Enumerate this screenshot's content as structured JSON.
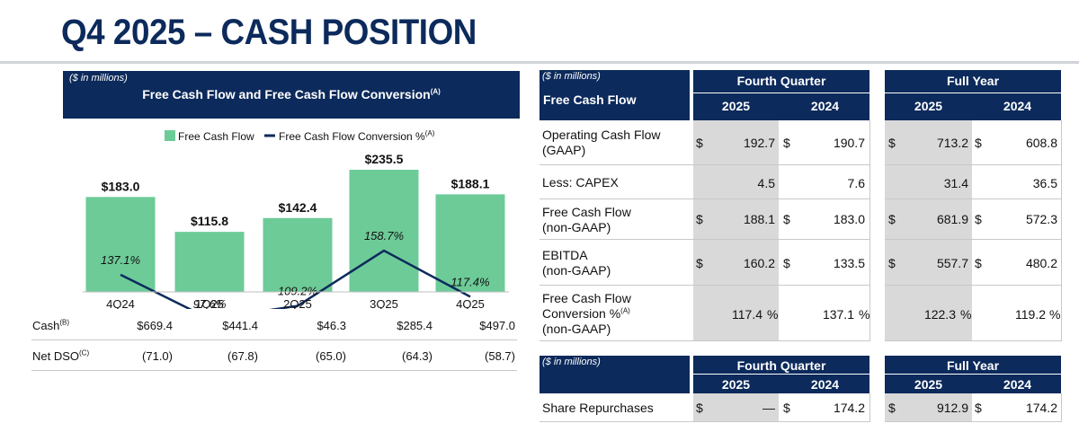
{
  "page": {
    "title": "Q4 2025 – CASH POSITION"
  },
  "chart_panel": {
    "units": "($ in millions)",
    "title": "Free Cash Flow and Free Cash Flow Conversion",
    "title_sup": "(A)",
    "legend": {
      "bar": "Free Cash Flow",
      "line": "Free Cash Flow Conversion %",
      "line_sup": "(A)"
    }
  },
  "chart_data": {
    "type": "bar",
    "title": "Free Cash Flow and Free Cash Flow Conversion",
    "categories": [
      "4Q24",
      "1Q25",
      "2Q25",
      "3Q25",
      "4Q25"
    ],
    "series": [
      {
        "name": "Free Cash Flow",
        "type": "bar",
        "values": [
          183.0,
          115.8,
          142.4,
          235.5,
          188.1
        ],
        "labels": [
          "$183.0",
          "$115.8",
          "$142.4",
          "$235.5",
          "$188.1"
        ],
        "color": "#6dcb98"
      },
      {
        "name": "Free Cash Flow Conversion %",
        "type": "line",
        "values": [
          137.1,
          97.6,
          109.2,
          158.7,
          117.4
        ],
        "labels": [
          "137.1%",
          "97.6%",
          "109.2%",
          "158.7%",
          "117.4%"
        ],
        "color": "#0c2a5b"
      }
    ],
    "grid": false,
    "legend_position": "top"
  },
  "chart_rows": [
    {
      "label": "Cash",
      "sup": "(B)",
      "values": [
        "$669.4",
        "$441.4",
        "$46.3",
        "$285.4",
        "$497.0"
      ]
    },
    {
      "label": "Net DSO",
      "sup": "(C)",
      "values": [
        "(71.0)",
        "(67.8)",
        "(65.0)",
        "(64.3)",
        "(58.7)"
      ]
    }
  ],
  "fcf_table": {
    "units": "($ in millions)",
    "title": "Free Cash Flow",
    "group_q": "Fourth Quarter",
    "group_y": "Full Year",
    "years": [
      "2025",
      "2024",
      "2025",
      "2024"
    ],
    "dollar": "$",
    "pct": "%",
    "rows": [
      {
        "label": [
          "Operating Cash Flow",
          "(GAAP)"
        ],
        "values": [
          "192.7",
          "190.7",
          "713.2",
          "608.8"
        ]
      },
      {
        "label": [
          "Less: CAPEX"
        ],
        "values": [
          "4.5",
          "7.6",
          "31.4",
          "36.5"
        ]
      },
      {
        "label": [
          "Free Cash Flow",
          "(non-GAAP)"
        ],
        "values": [
          "188.1",
          "183.0",
          "681.9",
          "572.3"
        ]
      },
      {
        "label": [
          "EBITDA",
          "(non-GAAP)"
        ],
        "values": [
          "160.2",
          "133.5",
          "557.7",
          "480.2"
        ]
      },
      {
        "label": [
          "Free Cash Flow",
          "Conversion %",
          "(non-GAAP)"
        ],
        "label_sup": "(A)",
        "values": [
          "117.4",
          "137.1",
          "122.3",
          "119.2"
        ]
      }
    ]
  },
  "repurchase_table": {
    "units": "($ in millions)",
    "group_q": "Fourth Quarter",
    "group_y": "Full Year",
    "years": [
      "2025",
      "2024",
      "2025",
      "2024"
    ],
    "row": {
      "label": "Share Repurchases",
      "values": [
        "—",
        "174.2",
        "912.9",
        "174.2"
      ]
    }
  }
}
